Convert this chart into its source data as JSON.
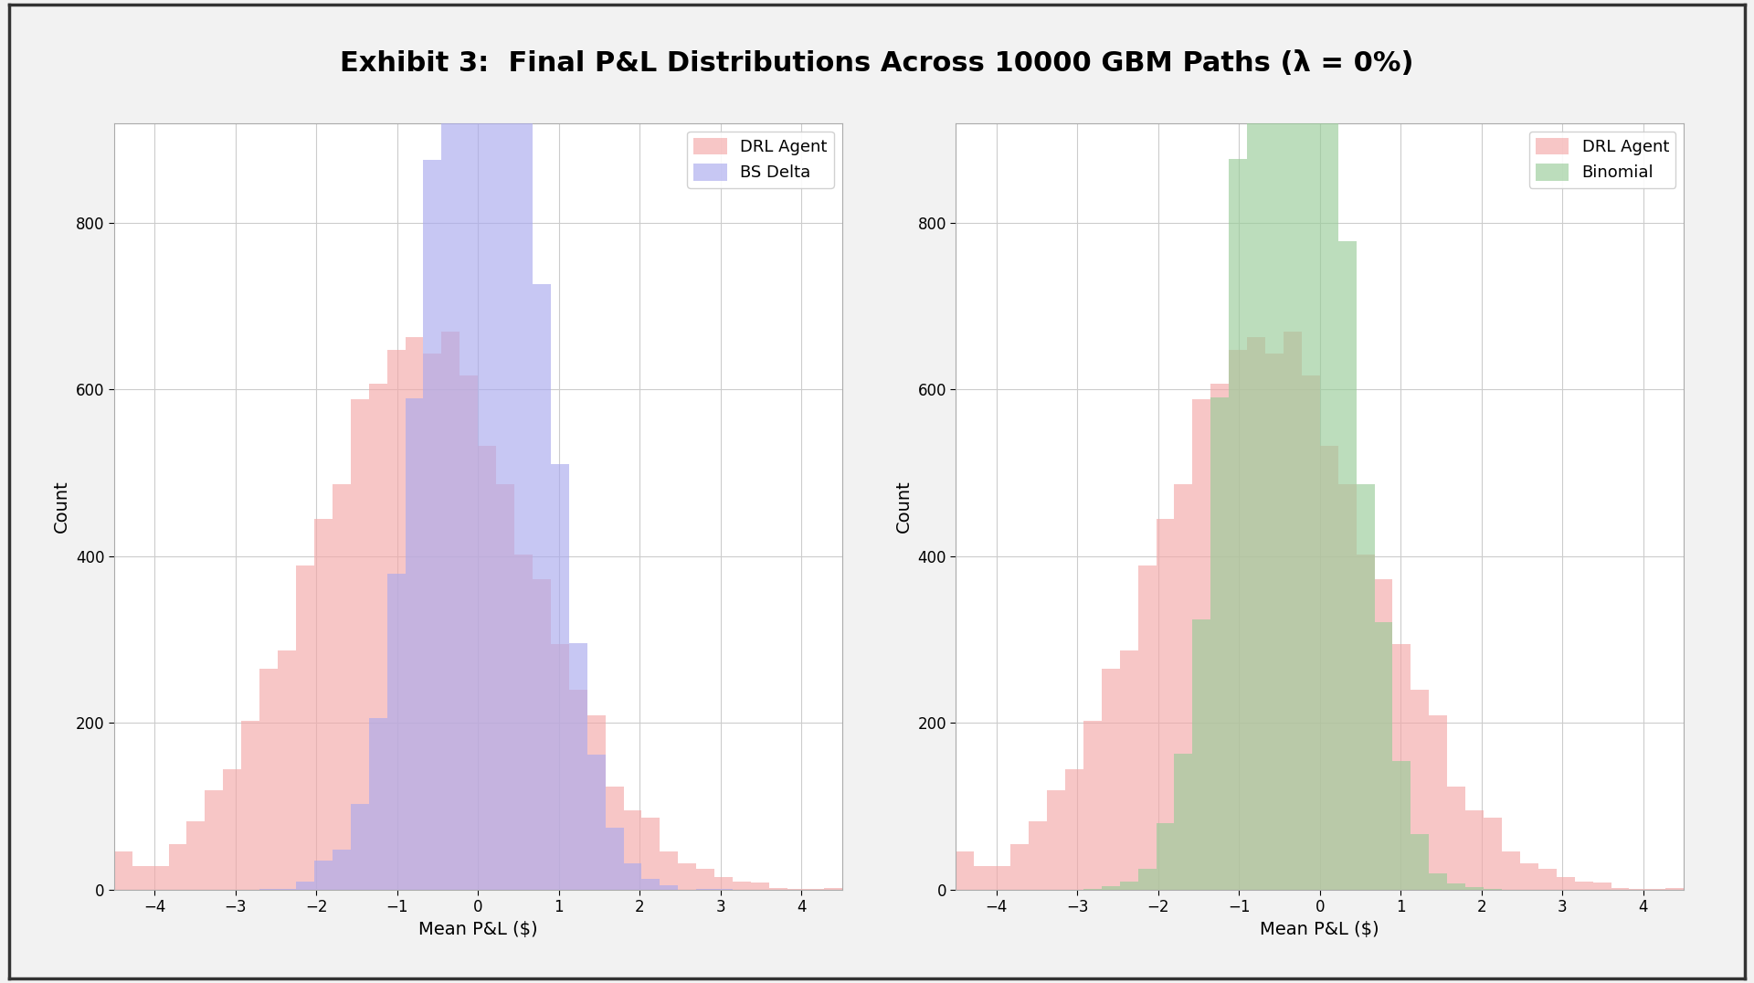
{
  "title": "Exhibit 3:  Final P&L Distributions Across 10000 GBM Paths (λ = 0%)",
  "title_fontsize": 22,
  "title_fontweight": "bold",
  "xlabel": "Mean P&L ($)",
  "ylabel": "Count",
  "xlim": [
    -4.5,
    4.5
  ],
  "ylim": [
    0,
    920
  ],
  "yticks": [
    0,
    200,
    400,
    600,
    800
  ],
  "xticks": [
    -4,
    -3,
    -2,
    -1,
    0,
    1,
    2,
    3,
    4
  ],
  "n_bins": 40,
  "n_paths": 10000,
  "drl_mean": -0.7,
  "drl_std": 1.35,
  "bs_mean": 0.05,
  "bs_std": 0.68,
  "binom_mean": -0.35,
  "binom_std": 0.65,
  "drl_color": "#F4A8A8",
  "drl_alpha": 0.65,
  "bs_color": "#AAAAEE",
  "bs_alpha": 0.65,
  "binom_color": "#99CC99",
  "binom_alpha": 0.65,
  "legend_labels_left": [
    "DRL Agent",
    "BS Delta"
  ],
  "legend_labels_right": [
    "DRL Agent",
    "Binomial"
  ],
  "plot_bg_color": "#FFFFFF",
  "fig_bg_color": "#F2F2F2",
  "grid_color": "#CCCCCC",
  "label_fontsize": 14,
  "tick_fontsize": 12,
  "legend_fontsize": 13,
  "border_color": "#333333",
  "border_linewidth": 2.5
}
